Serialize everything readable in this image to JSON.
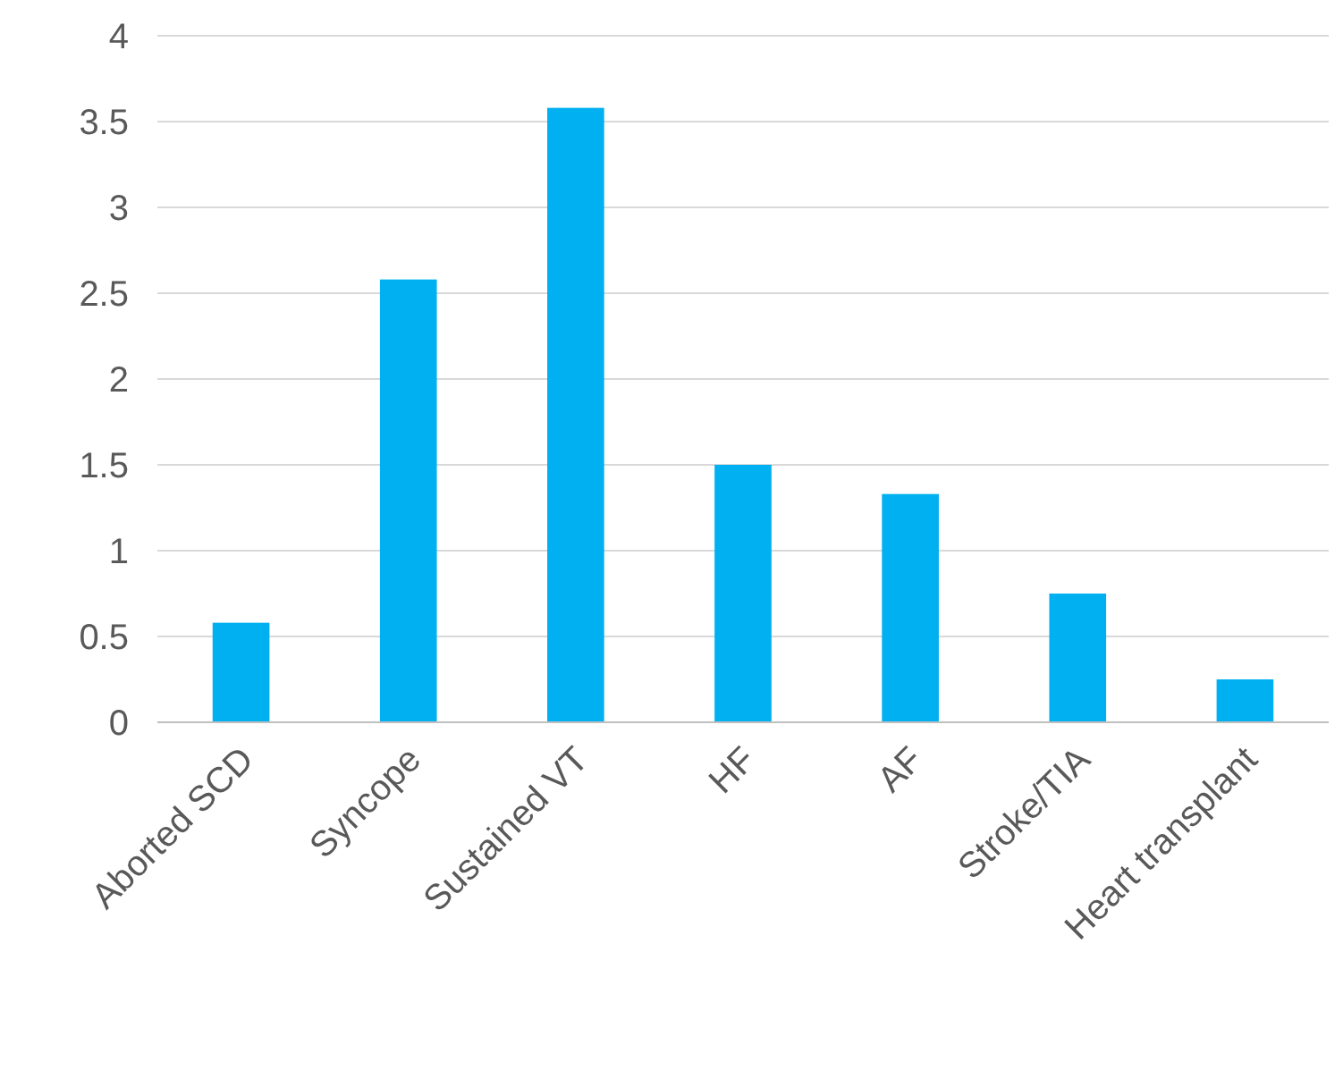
{
  "chart_data": {
    "type": "bar",
    "categories": [
      "Aborted SCD",
      "Syncope",
      "Sustained VT",
      "HF",
      "AF",
      "Stroke/TIA",
      "Heart transplant"
    ],
    "values": [
      0.58,
      2.58,
      3.58,
      1.5,
      1.33,
      0.75,
      0.25
    ],
    "color": "#00b0f0",
    "ylim": [
      0,
      4
    ],
    "yticks": [
      0,
      0.5,
      1,
      1.5,
      2,
      2.5,
      3,
      3.5,
      4
    ],
    "grid": "y"
  }
}
